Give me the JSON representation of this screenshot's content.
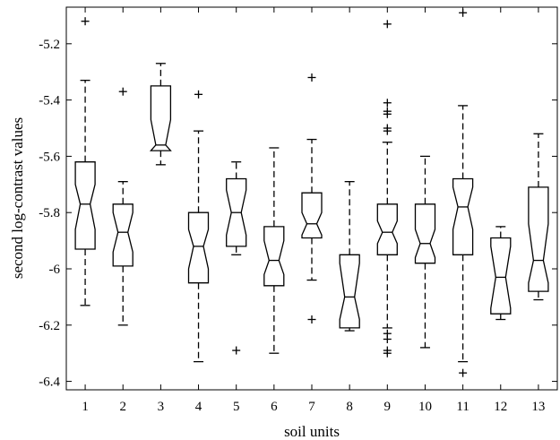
{
  "chart_data": {
    "type": "box",
    "notched": true,
    "xlabel": "soil units",
    "ylabel": "second log-contrast values",
    "ylim": [
      -6.43,
      -5.07
    ],
    "yticks": [
      -5.2,
      -5.4,
      -5.6,
      -5.8,
      -6,
      -6.2,
      -6.4
    ],
    "ytick_labels": [
      "-5.2",
      "-5.4",
      "-5.6",
      "-5.8",
      "-6",
      "-6.2",
      "-6.4"
    ],
    "categories": [
      "1",
      "2",
      "3",
      "4",
      "5",
      "6",
      "7",
      "8",
      "9",
      "10",
      "11",
      "12",
      "13"
    ],
    "boxes": [
      {
        "q1": -5.93,
        "median": -5.77,
        "q3": -5.62,
        "notch_low": -5.86,
        "notch_high": -5.7,
        "whisker_low": -6.13,
        "whisker_high": -5.33,
        "outliers": [
          -5.12
        ]
      },
      {
        "q1": -5.99,
        "median": -5.87,
        "q3": -5.77,
        "notch_low": -5.94,
        "notch_high": -5.8,
        "whisker_low": -6.2,
        "whisker_high": -5.69,
        "outliers": [
          -5.37
        ]
      },
      {
        "q1": -5.58,
        "median": -5.56,
        "q3": -5.35,
        "notch_low": -5.58,
        "notch_high": -5.47,
        "whisker_low": -5.63,
        "whisker_high": -5.27,
        "outliers": []
      },
      {
        "q1": -6.05,
        "median": -5.92,
        "q3": -5.8,
        "notch_low": -6.0,
        "notch_high": -5.86,
        "whisker_low": -6.33,
        "whisker_high": -5.51,
        "outliers": [
          -5.38
        ]
      },
      {
        "q1": -5.92,
        "median": -5.8,
        "q3": -5.68,
        "notch_low": -5.88,
        "notch_high": -5.72,
        "whisker_low": -5.95,
        "whisker_high": -5.62,
        "outliers": [
          -6.29
        ]
      },
      {
        "q1": -6.06,
        "median": -5.97,
        "q3": -5.85,
        "notch_low": -6.02,
        "notch_high": -5.9,
        "whisker_low": -6.3,
        "whisker_high": -5.57,
        "outliers": []
      },
      {
        "q1": -5.89,
        "median": -5.84,
        "q3": -5.73,
        "notch_low": -5.88,
        "notch_high": -5.8,
        "whisker_low": -6.04,
        "whisker_high": -5.54,
        "outliers": [
          -5.32,
          -6.18
        ]
      },
      {
        "q1": -6.21,
        "median": -6.1,
        "q3": -5.95,
        "notch_low": -6.18,
        "notch_high": -5.98,
        "whisker_low": -6.22,
        "whisker_high": -5.69,
        "outliers": []
      },
      {
        "q1": -5.95,
        "median": -5.87,
        "q3": -5.77,
        "notch_low": -5.91,
        "notch_high": -5.83,
        "whisker_low": -6.21,
        "whisker_high": -5.55,
        "outliers": [
          -5.13,
          -5.41,
          -5.44,
          -5.45,
          -5.5,
          -5.51,
          -6.23,
          -6.25,
          -6.29,
          -6.3
        ]
      },
      {
        "q1": -5.98,
        "median": -5.91,
        "q3": -5.77,
        "notch_low": -5.96,
        "notch_high": -5.86,
        "whisker_low": -6.28,
        "whisker_high": -5.6,
        "outliers": []
      },
      {
        "q1": -5.95,
        "median": -5.78,
        "q3": -5.68,
        "notch_low": -5.86,
        "notch_high": -5.71,
        "whisker_low": -6.33,
        "whisker_high": -5.42,
        "outliers": [
          -5.09,
          -6.37
        ]
      },
      {
        "q1": -6.16,
        "median": -6.03,
        "q3": -5.89,
        "notch_low": -6.14,
        "notch_high": -5.92,
        "whisker_low": -6.18,
        "whisker_high": -5.85,
        "outliers": []
      },
      {
        "q1": -6.08,
        "median": -5.97,
        "q3": -5.71,
        "notch_low": -6.05,
        "notch_high": -5.84,
        "whisker_low": -6.11,
        "whisker_high": -5.52,
        "outliers": []
      }
    ]
  }
}
